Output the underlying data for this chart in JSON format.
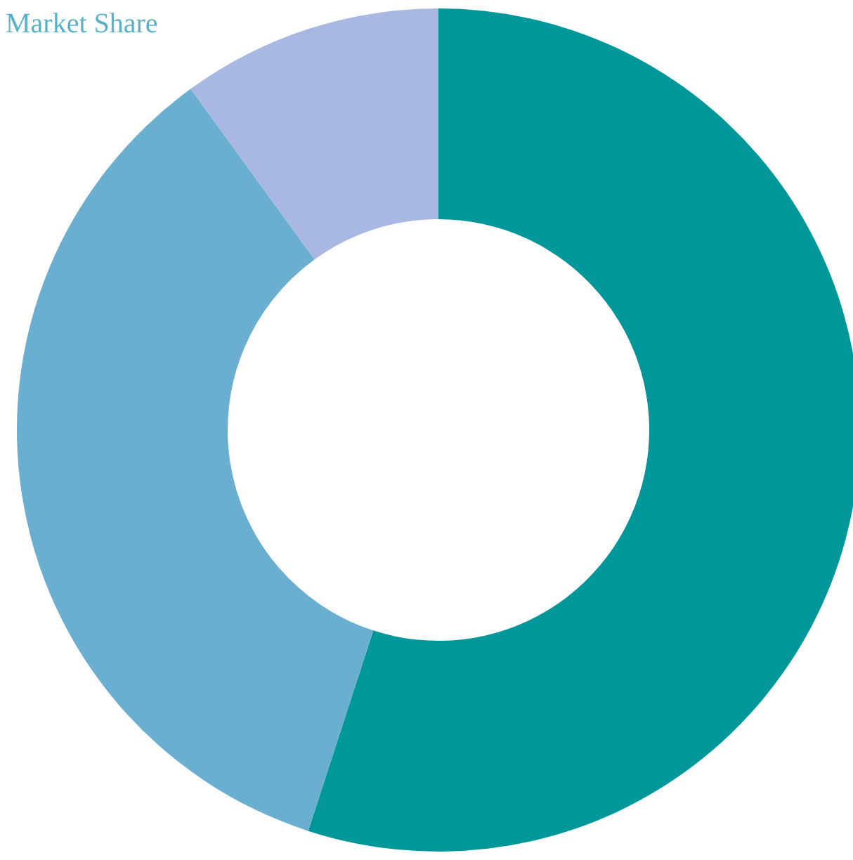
{
  "chart_data": {
    "type": "donut",
    "title": "Market Share",
    "categories": [
      null,
      null,
      null
    ],
    "values": [
      55,
      35,
      10
    ],
    "colors": [
      "#00979b",
      "#6aaed0",
      "#a9b8e2"
    ]
  }
}
